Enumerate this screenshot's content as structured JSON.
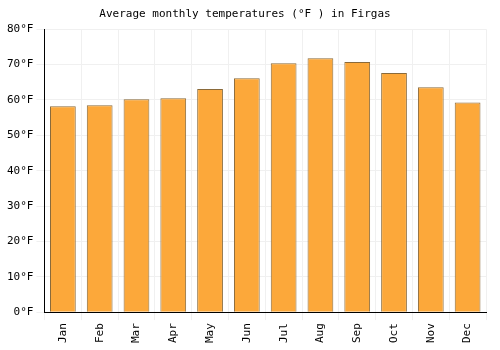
{
  "chart_data": {
    "type": "bar",
    "title": "Average monthly temperatures (°F ) in Firgas",
    "categories": [
      "Jan",
      "Feb",
      "Mar",
      "Apr",
      "May",
      "Jun",
      "Jul",
      "Aug",
      "Sep",
      "Oct",
      "Nov",
      "Dec"
    ],
    "values": [
      58.2,
      58.5,
      60.2,
      60.5,
      63.1,
      66.1,
      70.4,
      71.8,
      70.7,
      67.6,
      63.6,
      59.3
    ],
    "color": "#fca83a",
    "ylim": [
      0,
      80
    ],
    "yticks": [
      {
        "value": 0,
        "label": "0°F"
      },
      {
        "value": 10,
        "label": "10°F"
      },
      {
        "value": 20,
        "label": "20°F"
      },
      {
        "value": 30,
        "label": "30°F"
      },
      {
        "value": 40,
        "label": "40°F"
      },
      {
        "value": 50,
        "label": "50°F"
      },
      {
        "value": 60,
        "label": "60°F"
      },
      {
        "value": 70,
        "label": "70°F"
      },
      {
        "value": 80,
        "label": "80°F"
      }
    ],
    "grid": true
  }
}
